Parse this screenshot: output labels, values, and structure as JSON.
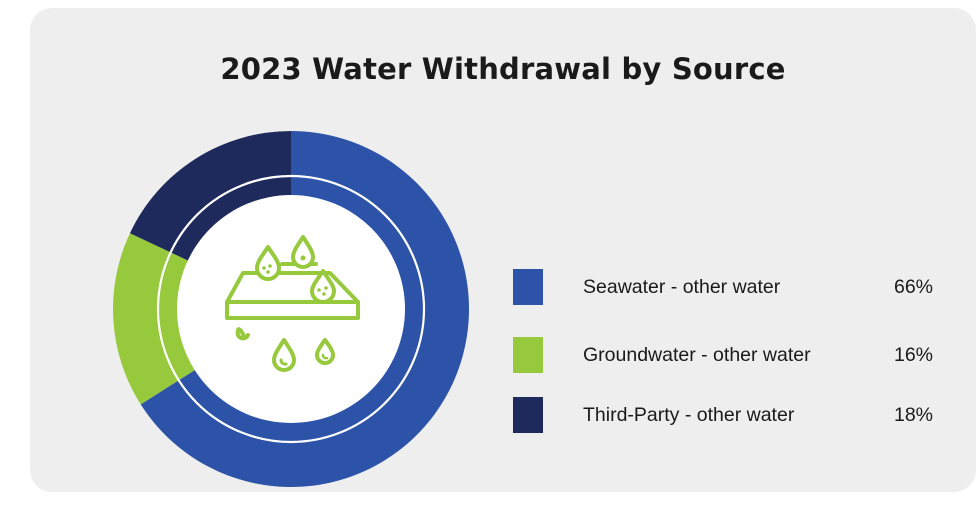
{
  "colors": {
    "seawater": "#2c53a8",
    "groundwater": "#97c93d",
    "third_party": "#1f2a5c",
    "icon": "#97c93d",
    "card": "#eeeeee"
  },
  "icon": "water-withdrawal-icon",
  "chart_data": {
    "type": "pie",
    "variant": "donut",
    "title": "2023 Water Withdrawal by Source",
    "legend_position": "right",
    "series": [
      {
        "name": "Seawater - other water",
        "value": 66,
        "label": "66%",
        "color": "#2c53a8"
      },
      {
        "name": "Groundwater - other water",
        "value": 16,
        "label": "16%",
        "color": "#97c93d"
      },
      {
        "name": "Third-Party - other water",
        "value": 18,
        "label": "18%",
        "color": "#1f2a5c"
      }
    ]
  }
}
